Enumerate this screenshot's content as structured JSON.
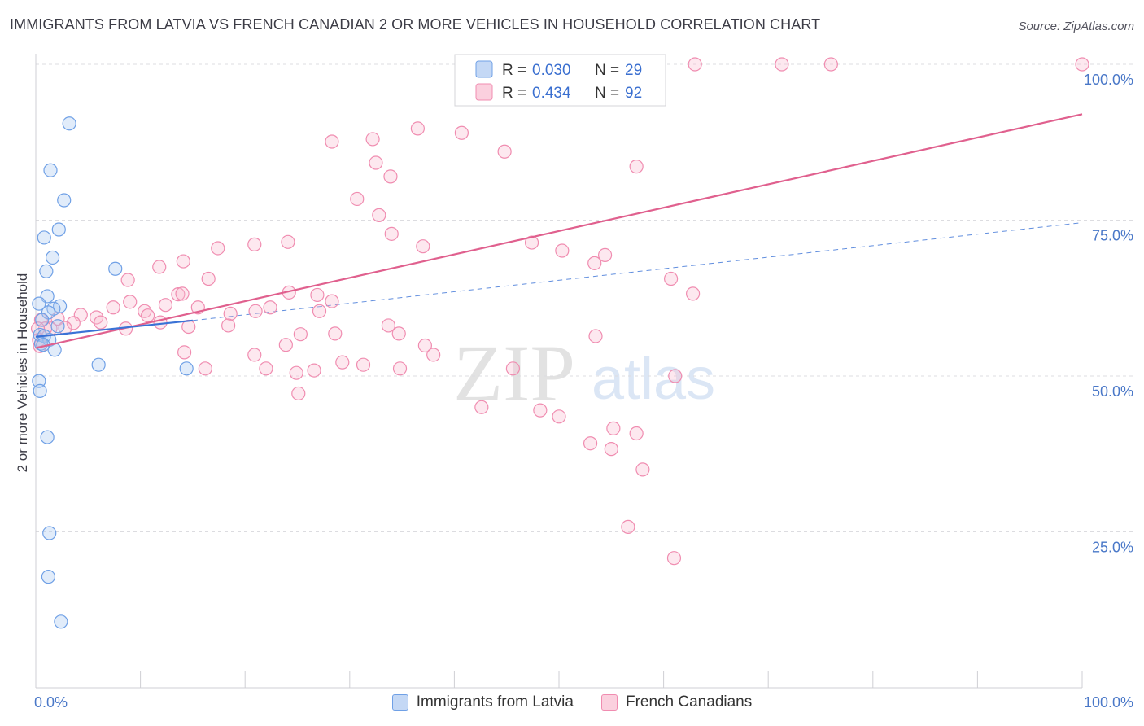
{
  "title": "IMMIGRANTS FROM LATVIA VS FRENCH CANADIAN 2 OR MORE VEHICLES IN HOUSEHOLD CORRELATION CHART",
  "source": "Source: ZipAtlas.com",
  "watermark": {
    "zip": "ZIP",
    "atlas": "atlas"
  },
  "legend_box": {
    "rows": [
      {
        "r_label": "R =",
        "r_value": "0.030",
        "n_label": "N =",
        "n_value": "29"
      },
      {
        "r_label": "R =",
        "r_value": "0.434",
        "n_label": "N =",
        "n_value": "92"
      }
    ]
  },
  "bottom_legend": [
    {
      "label": "Immigrants from Latvia"
    },
    {
      "label": "French Canadians"
    }
  ],
  "chart_data": {
    "type": "scatter",
    "title": "IMMIGRANTS FROM LATVIA VS FRENCH CANADIAN 2 OR MORE VEHICLES IN HOUSEHOLD CORRELATION CHART",
    "xlabel": "",
    "ylabel": "2 or more Vehicles in Household",
    "xlim": [
      0,
      100
    ],
    "ylim": [
      0,
      100
    ],
    "x_tick_labels": [
      "0.0%",
      "100.0%"
    ],
    "y_ticks": [
      25,
      50,
      75,
      100
    ],
    "y_tick_labels": [
      "25.0%",
      "50.0%",
      "75.0%",
      "100.0%"
    ],
    "grid": true,
    "legend_position": "top-center",
    "colors": {
      "latvia": "#6fa0e6",
      "french": "#f08cb0",
      "latvia_line": "#3a72d6",
      "french_line": "#e0608e"
    },
    "series": [
      {
        "name": "Immigrants from Latvia",
        "color": "#6fa0e6",
        "points": [
          [
            3.2,
            90.5
          ],
          [
            1.4,
            83.0
          ],
          [
            2.7,
            78.2
          ],
          [
            2.2,
            73.5
          ],
          [
            0.8,
            72.2
          ],
          [
            1.6,
            69.0
          ],
          [
            1.0,
            66.8
          ],
          [
            7.6,
            67.2
          ],
          [
            1.1,
            62.8
          ],
          [
            0.3,
            61.6
          ],
          [
            2.3,
            61.2
          ],
          [
            1.7,
            60.8
          ],
          [
            1.2,
            60.2
          ],
          [
            0.6,
            59.0
          ],
          [
            2.1,
            58.0
          ],
          [
            0.4,
            56.6
          ],
          [
            0.8,
            56.4
          ],
          [
            1.3,
            55.8
          ],
          [
            0.5,
            55.2
          ],
          [
            0.7,
            55.0
          ],
          [
            1.8,
            54.2
          ],
          [
            6.0,
            51.8
          ],
          [
            14.4,
            51.2
          ],
          [
            0.3,
            49.2
          ],
          [
            0.4,
            47.6
          ],
          [
            1.1,
            40.2
          ],
          [
            1.3,
            24.8
          ],
          [
            1.2,
            17.8
          ],
          [
            2.4,
            10.6
          ]
        ],
        "trend": {
          "x": [
            0,
            15
          ],
          "y": [
            56.3,
            58.9
          ]
        },
        "trend_dashed": {
          "x": [
            15,
            100
          ],
          "y": [
            58.9,
            74.6
          ]
        }
      },
      {
        "name": "French Canadians",
        "color": "#f08cb0",
        "points": [
          [
            48.0,
            100.0
          ],
          [
            59.0,
            100.0
          ],
          [
            63.0,
            100.0
          ],
          [
            71.3,
            100.0
          ],
          [
            76.0,
            100.0
          ],
          [
            100.0,
            100.0
          ],
          [
            36.5,
            89.7
          ],
          [
            28.3,
            87.6
          ],
          [
            40.7,
            89.0
          ],
          [
            32.2,
            88.0
          ],
          [
            32.5,
            84.2
          ],
          [
            44.8,
            86.0
          ],
          [
            57.4,
            83.6
          ],
          [
            33.9,
            82.0
          ],
          [
            30.7,
            78.4
          ],
          [
            32.8,
            75.8
          ],
          [
            34.0,
            72.8
          ],
          [
            20.9,
            71.1
          ],
          [
            24.1,
            71.5
          ],
          [
            17.4,
            70.5
          ],
          [
            37.0,
            70.8
          ],
          [
            47.4,
            71.4
          ],
          [
            50.3,
            70.1
          ],
          [
            54.4,
            69.4
          ],
          [
            53.4,
            68.1
          ],
          [
            60.7,
            65.6
          ],
          [
            62.8,
            63.2
          ],
          [
            14.1,
            68.4
          ],
          [
            11.8,
            67.5
          ],
          [
            8.8,
            65.4
          ],
          [
            16.5,
            65.6
          ],
          [
            13.6,
            63.1
          ],
          [
            14.0,
            63.2
          ],
          [
            24.2,
            63.4
          ],
          [
            26.9,
            63.0
          ],
          [
            28.3,
            62.0
          ],
          [
            21.0,
            60.4
          ],
          [
            18.6,
            60.0
          ],
          [
            22.4,
            61.0
          ],
          [
            15.5,
            61.0
          ],
          [
            12.4,
            61.4
          ],
          [
            10.4,
            60.4
          ],
          [
            9.0,
            61.9
          ],
          [
            7.4,
            61.0
          ],
          [
            5.8,
            59.4
          ],
          [
            4.3,
            59.8
          ],
          [
            2.1,
            59.2
          ],
          [
            3.6,
            58.5
          ],
          [
            0.5,
            59.0
          ],
          [
            1.4,
            57.6
          ],
          [
            0.9,
            57.6
          ],
          [
            0.2,
            57.6
          ],
          [
            0.3,
            55.8
          ],
          [
            0.4,
            54.8
          ],
          [
            2.8,
            57.7
          ],
          [
            6.2,
            58.6
          ],
          [
            8.6,
            57.6
          ],
          [
            10.7,
            59.7
          ],
          [
            11.9,
            58.6
          ],
          [
            14.6,
            57.9
          ],
          [
            18.4,
            58.1
          ],
          [
            23.9,
            55.0
          ],
          [
            25.3,
            56.7
          ],
          [
            27.1,
            60.4
          ],
          [
            28.6,
            56.8
          ],
          [
            33.7,
            58.1
          ],
          [
            34.7,
            56.8
          ],
          [
            37.2,
            54.9
          ],
          [
            14.2,
            53.8
          ],
          [
            16.2,
            51.2
          ],
          [
            20.9,
            53.4
          ],
          [
            22.0,
            51.2
          ],
          [
            24.9,
            50.5
          ],
          [
            26.6,
            50.9
          ],
          [
            29.3,
            52.2
          ],
          [
            31.3,
            51.8
          ],
          [
            34.8,
            51.2
          ],
          [
            38.0,
            53.4
          ],
          [
            45.6,
            51.2
          ],
          [
            42.6,
            45.0
          ],
          [
            48.2,
            44.5
          ],
          [
            50.0,
            43.5
          ],
          [
            55.2,
            41.6
          ],
          [
            57.4,
            40.8
          ],
          [
            53.0,
            39.2
          ],
          [
            55.0,
            38.3
          ],
          [
            58.0,
            35.0
          ],
          [
            56.6,
            25.8
          ],
          [
            61.0,
            20.8
          ],
          [
            25.1,
            47.2
          ],
          [
            53.5,
            56.4
          ],
          [
            61.1,
            50.0
          ]
        ],
        "trend": {
          "x": [
            0,
            100
          ],
          "y": [
            54.5,
            92.0
          ]
        }
      }
    ]
  }
}
